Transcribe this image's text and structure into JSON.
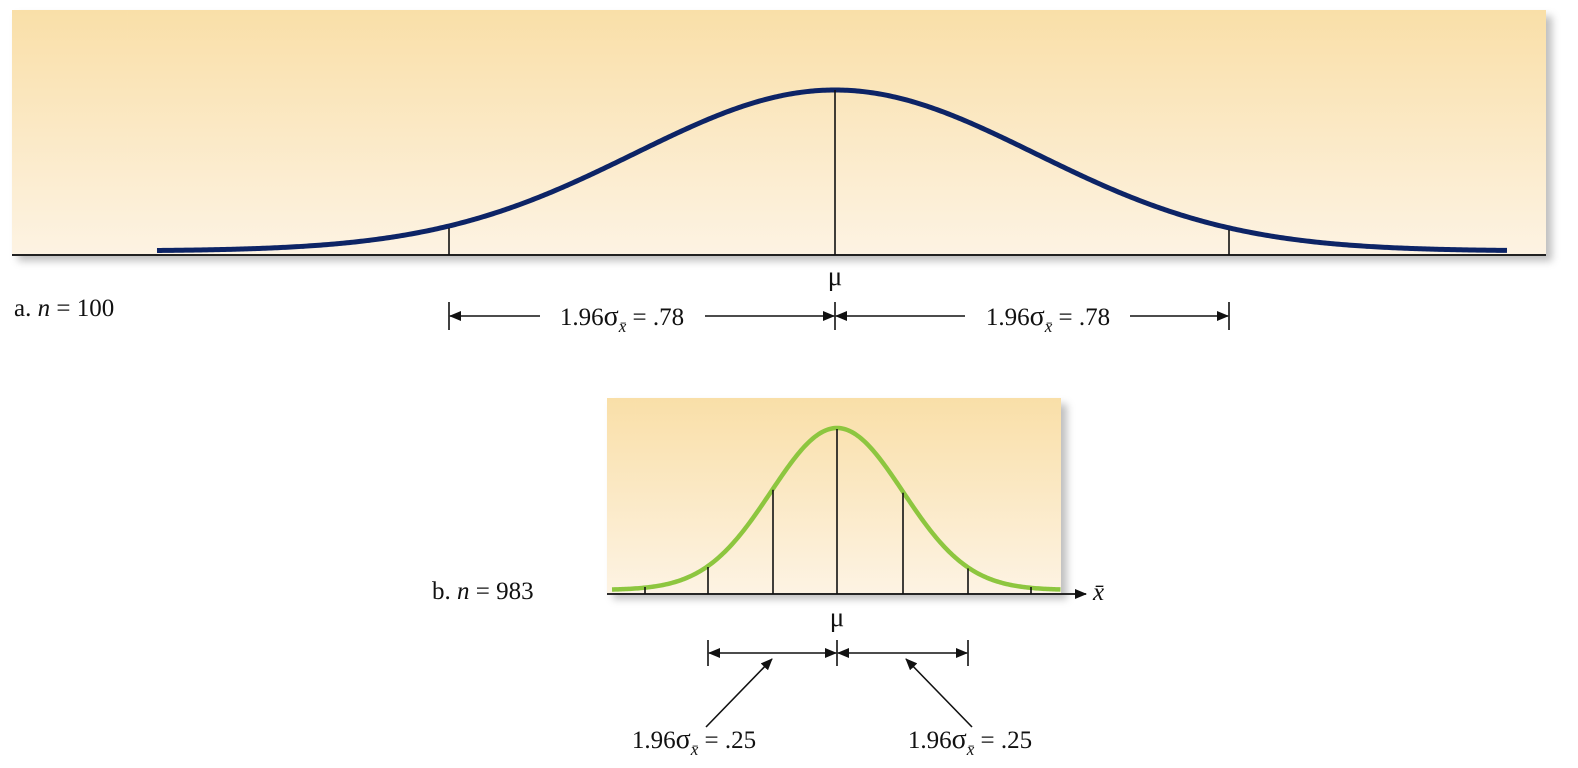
{
  "panel_a": {
    "prefix": "a. ",
    "n_symbol": "n",
    "n_text": " = 100",
    "mean_label": "μ",
    "left_interval": {
      "multiplier": "1.96",
      "sigma": "σ",
      "subscript": "x̄",
      "value": " = .78"
    },
    "right_interval": {
      "multiplier": "1.96",
      "sigma": "σ",
      "subscript": "x̄",
      "value": " = .78"
    },
    "curve_color": "#0d2466",
    "background_top": "#f9dfa8",
    "background_bottom": "#fdf3e3"
  },
  "panel_b": {
    "prefix": "b. ",
    "n_symbol": "n",
    "n_text": " = 983",
    "mean_label": "μ",
    "axis_label": "x̄",
    "left_interval": {
      "multiplier": "1.96",
      "sigma": "σ",
      "subscript": "x̄",
      "value": " = .25"
    },
    "right_interval": {
      "multiplier": "1.96",
      "sigma": "σ",
      "subscript": "x̄",
      "value": " = .25"
    },
    "curve_color": "#8dc63f",
    "background_top": "#f9dfa8",
    "background_bottom": "#fdf3e3"
  }
}
